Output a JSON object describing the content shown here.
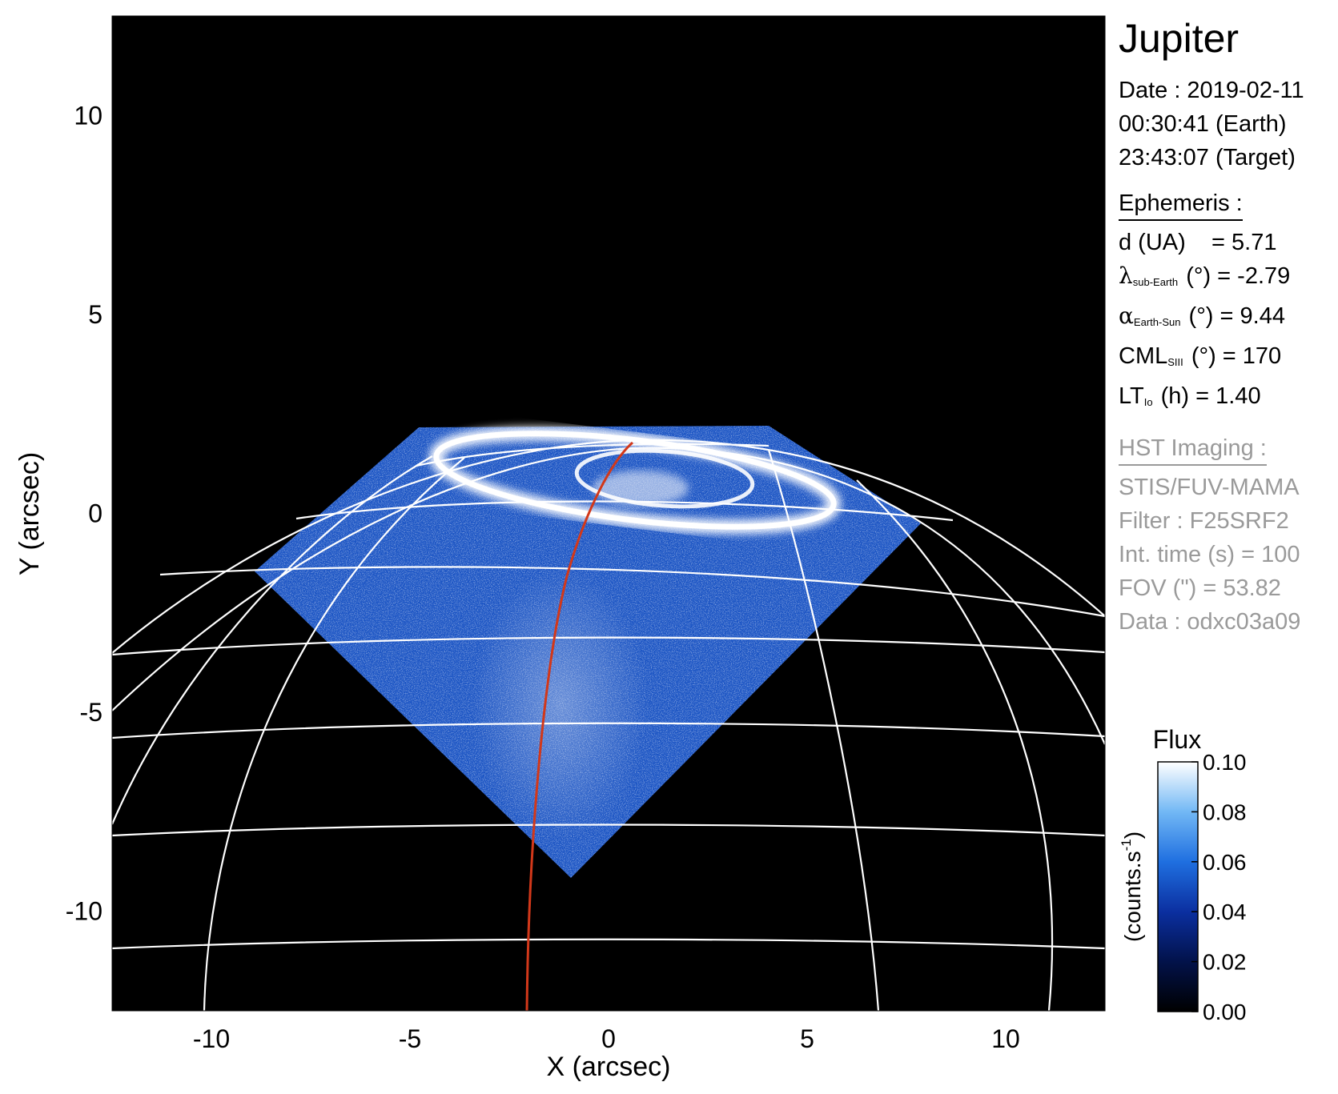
{
  "figure": {
    "x_axis_title": "X (arcsec)",
    "y_axis_title": "Y (arcsec)",
    "x_ticks": [
      {
        "value": -10,
        "label": "-10"
      },
      {
        "value": -5,
        "label": "-5"
      },
      {
        "value": 0,
        "label": "0"
      },
      {
        "value": 5,
        "label": "5"
      },
      {
        "value": 10,
        "label": "10"
      }
    ],
    "y_ticks": [
      {
        "value": 10,
        "label": "10"
      },
      {
        "value": 5,
        "label": "5"
      },
      {
        "value": 0,
        "label": "0"
      },
      {
        "value": -5,
        "label": "-5"
      },
      {
        "value": -10,
        "label": "-10"
      }
    ],
    "x_range": [
      -12.5,
      12.5
    ],
    "y_range": [
      -12.5,
      12.5
    ],
    "colors": {
      "background": "#000000",
      "grid": "#ffffff",
      "path": "#d2381a",
      "emission": "#1e5fd0"
    }
  },
  "info": {
    "title": "Jupiter",
    "date_line": "Date : 2019-02-11",
    "earth_time": "00:30:41 (Earth)",
    "target_time": "23:43:07 (Target)",
    "ephemeris": {
      "heading": "Ephemeris :",
      "distance": {
        "name": "d (UA)",
        "sep": "=",
        "value": "5.71"
      },
      "latitude": {
        "symbol": "λ",
        "subscript": "sub-Earth",
        "unit": "(°)",
        "sep": "=",
        "value": "-2.79"
      },
      "phase": {
        "symbol": "α",
        "subscript": "Earth-Sun",
        "unit": "(°)",
        "sep": "=",
        "value": "9.44"
      },
      "cml": {
        "symbol": "CML",
        "subscript": "SIII",
        "unit": "(°)",
        "sep": "=",
        "value": "170"
      },
      "lt": {
        "symbol": "LT",
        "subscript": "Io",
        "unit": "(h)",
        "sep": "=",
        "value": "1.40"
      }
    },
    "hst": {
      "heading": "HST Imaging :",
      "instrument": "STIS/FUV-MAMA",
      "filter": "Filter : F25SRF2",
      "int_time": "Int. time (s) = 100",
      "fov": "FOV (\") = 53.82",
      "data": "Data : odxc03a09"
    }
  },
  "colorbar": {
    "title": "Flux",
    "unit_label": "(counts.s",
    "unit_sup": "-1",
    "unit_close": ")",
    "ticks": [
      {
        "value": 0.1,
        "label": "0.10"
      },
      {
        "value": 0.08,
        "label": "0.08"
      },
      {
        "value": 0.06,
        "label": "0.06"
      },
      {
        "value": 0.04,
        "label": "0.04"
      },
      {
        "value": 0.02,
        "label": "0.02"
      },
      {
        "value": 0.0,
        "label": "0.00"
      }
    ],
    "range": [
      0,
      0.1
    ],
    "stops": [
      "#000000",
      "#02124a",
      "#0b2fa0",
      "#1f6fe0",
      "#72b8f5",
      "#ffffff"
    ]
  }
}
